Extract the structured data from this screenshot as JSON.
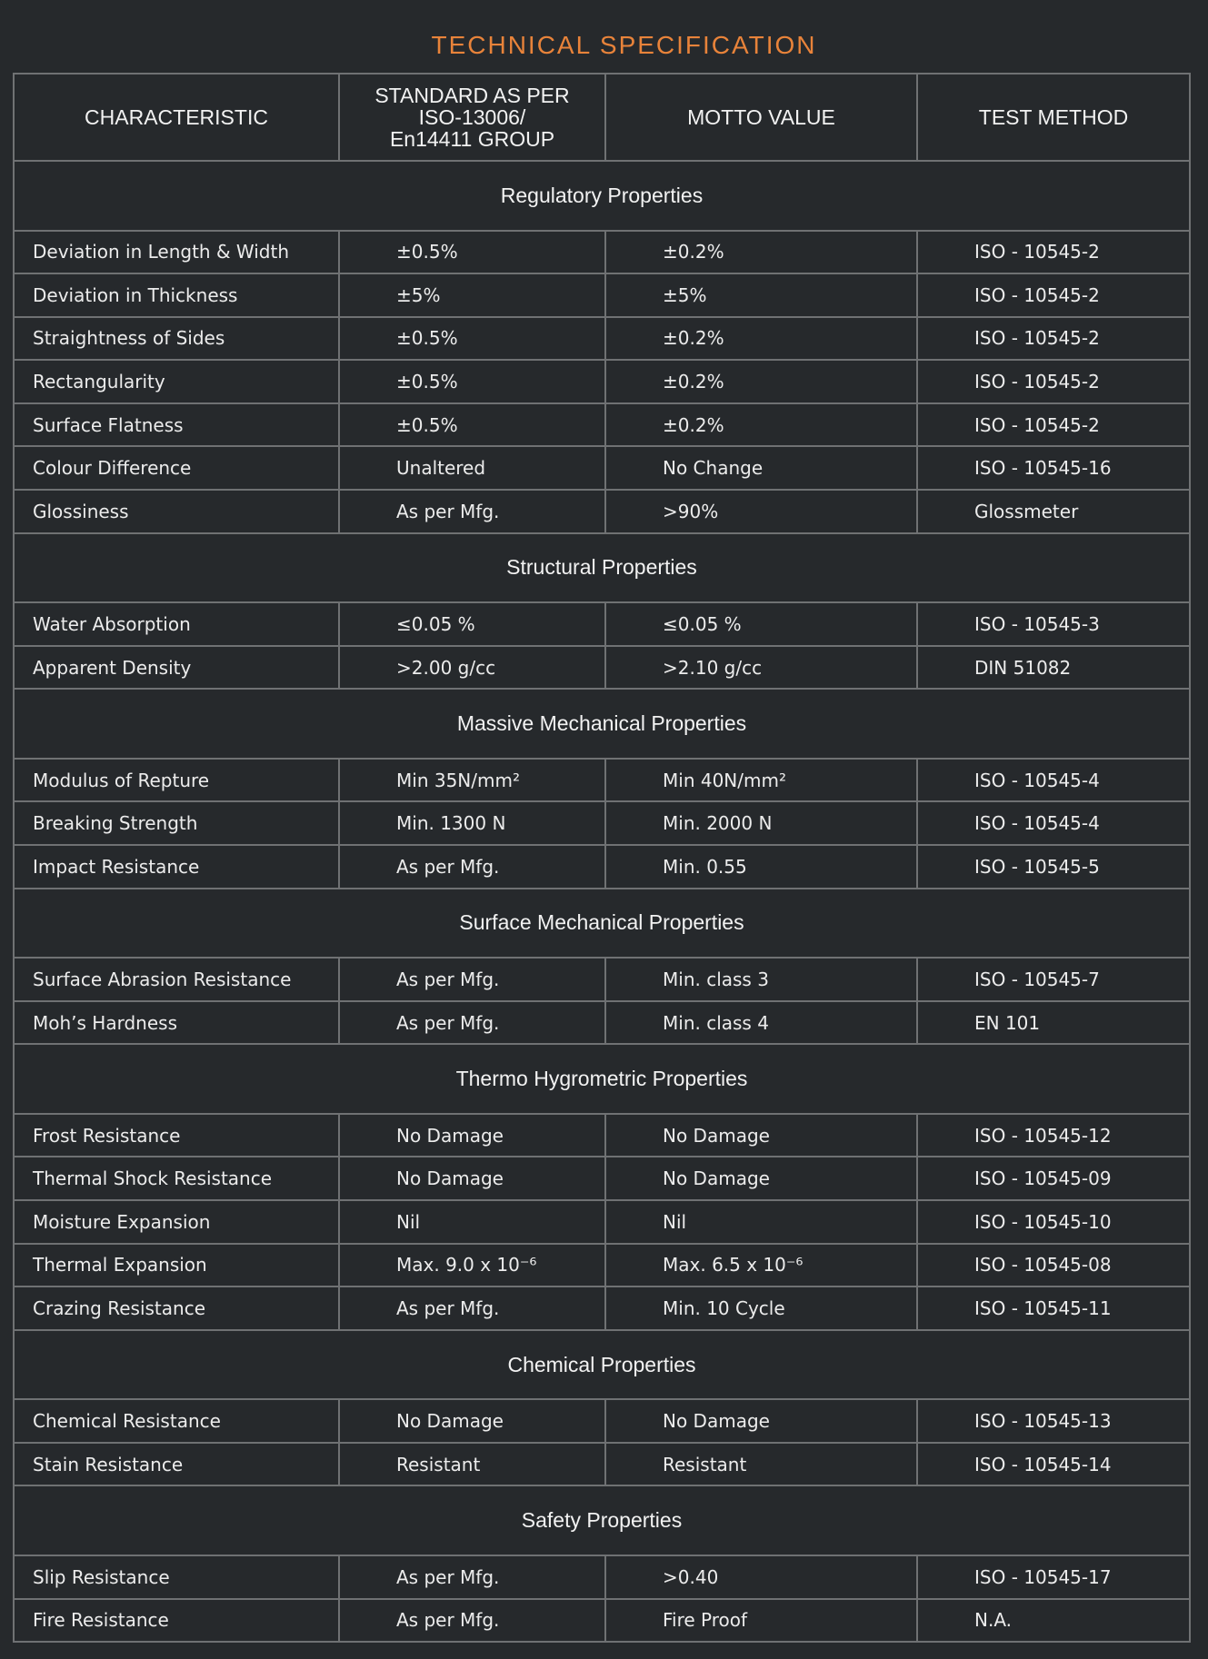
{
  "title": "TECHNICAL SPECIFICATION",
  "colors": {
    "background": "#26292c",
    "title": "#e8833a",
    "border": "#6f7173",
    "text": "#f2f2f2"
  },
  "headers": [
    "CHARACTERISTIC",
    "STANDARD AS PER\nISO-13006/\nEn14411 GROUP",
    "MOTTO VALUE",
    "TEST METHOD"
  ],
  "sections": [
    {
      "name": "Regulatory Properties",
      "rows": [
        [
          "Deviation in Length & Width",
          "±0.5%",
          "±0.2%",
          "ISO - 10545-2"
        ],
        [
          "Deviation in Thickness",
          "±5%",
          "±5%",
          "ISO - 10545-2"
        ],
        [
          "Straightness of Sides",
          "±0.5%",
          "±0.2%",
          "ISO - 10545-2"
        ],
        [
          "Rectangularity",
          "±0.5%",
          "±0.2%",
          "ISO - 10545-2"
        ],
        [
          "Surface Flatness",
          "±0.5%",
          "±0.2%",
          "ISO - 10545-2"
        ],
        [
          "Colour Difference",
          "Unaltered",
          "No Change",
          "ISO - 10545-16"
        ],
        [
          "Glossiness",
          "As per Mfg.",
          ">90%",
          "Glossmeter"
        ]
      ]
    },
    {
      "name": "Structural Properties",
      "rows": [
        [
          "Water Absorption",
          "≤0.05 %",
          "≤0.05 %",
          "ISO - 10545-3"
        ],
        [
          "Apparent Density",
          ">2.00 g/cc",
          ">2.10 g/cc",
          "DIN 51082"
        ]
      ]
    },
    {
      "name": "Massive Mechanical Properties",
      "rows": [
        [
          "Modulus of Repture",
          "Min 35N/mm²",
          "Min 40N/mm²",
          "ISO - 10545-4"
        ],
        [
          "Breaking Strength",
          "Min. 1300 N",
          "Min. 2000 N",
          "ISO - 10545-4"
        ],
        [
          "Impact Resistance",
          "As per Mfg.",
          "Min. 0.55",
          "ISO - 10545-5"
        ]
      ]
    },
    {
      "name": "Surface Mechanical Properties",
      "rows": [
        [
          "Surface Abrasion Resistance",
          "As per Mfg.",
          "Min. class 3",
          "ISO - 10545-7"
        ],
        [
          "Moh’s Hardness",
          "As per Mfg.",
          "Min. class 4",
          "EN 101"
        ]
      ]
    },
    {
      "name": "Thermo Hygrometric Properties",
      "rows": [
        [
          "Frost Resistance",
          "No Damage",
          "No Damage",
          "ISO - 10545-12"
        ],
        [
          "Thermal Shock Resistance",
          "No Damage",
          "No Damage",
          "ISO - 10545-09"
        ],
        [
          "Moisture Expansion",
          "Nil",
          "Nil",
          "ISO - 10545-10"
        ],
        [
          "Thermal Expansion",
          "Max. 9.0 x 10⁻⁶",
          "Max. 6.5 x 10⁻⁶",
          "ISO - 10545-08"
        ],
        [
          "Crazing Resistance",
          "As per Mfg.",
          "Min. 10 Cycle",
          "ISO - 10545-11"
        ]
      ]
    },
    {
      "name": "Chemical Properties",
      "rows": [
        [
          "Chemical Resistance",
          "No Damage",
          "No Damage",
          "ISO - 10545-13"
        ],
        [
          "Stain Resistance",
          "Resistant",
          "Resistant",
          "ISO - 10545-14"
        ]
      ]
    },
    {
      "name": "Safety Properties",
      "rows": [
        [
          "Slip Resistance",
          "As per Mfg.",
          ">0.40",
          "ISO - 10545-17"
        ],
        [
          "Fire Resistance",
          "As per Mfg.",
          "Fire Proof",
          "N.A."
        ]
      ]
    }
  ]
}
